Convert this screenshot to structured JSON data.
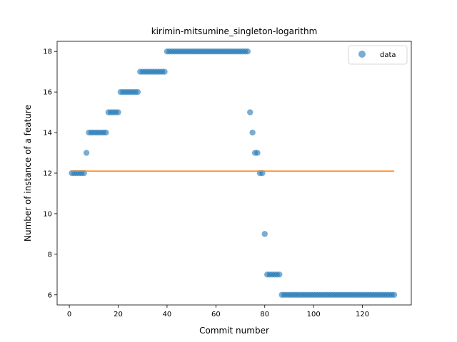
{
  "chart_data": {
    "type": "scatter",
    "title": "kirimin-mitsumine_singleton-logarithm",
    "xlabel": "Commit number",
    "ylabel": "Number of instance of a feature",
    "xlim": [
      -5,
      140
    ],
    "ylim": [
      5.5,
      18.5
    ],
    "xticks": [
      0,
      20,
      40,
      60,
      80,
      100,
      120
    ],
    "yticks": [
      6,
      8,
      10,
      12,
      14,
      16,
      18
    ],
    "grid": false,
    "legend": {
      "position": "top-right",
      "entries": [
        "data"
      ]
    },
    "series": [
      {
        "name": "data",
        "kind": "scatter",
        "color": "#1f77b4",
        "x": [
          1,
          2,
          3,
          4,
          5,
          6,
          7,
          8,
          9,
          10,
          11,
          12,
          13,
          14,
          15,
          16,
          17,
          18,
          19,
          20,
          21,
          22,
          23,
          24,
          25,
          26,
          27,
          28,
          29,
          30,
          31,
          32,
          33,
          34,
          35,
          36,
          37,
          38,
          39,
          40,
          41,
          42,
          43,
          44,
          45,
          46,
          47,
          48,
          49,
          50,
          51,
          52,
          53,
          54,
          55,
          56,
          57,
          58,
          59,
          60,
          61,
          62,
          63,
          64,
          65,
          66,
          67,
          68,
          69,
          70,
          71,
          72,
          73,
          74,
          75,
          76,
          77,
          78,
          79,
          80,
          81,
          82,
          83,
          84,
          85,
          86,
          87,
          88,
          89,
          90,
          91,
          92,
          93,
          94,
          95,
          96,
          97,
          98,
          99,
          100,
          101,
          102,
          103,
          104,
          105,
          106,
          107,
          108,
          109,
          110,
          111,
          112,
          113,
          114,
          115,
          116,
          117,
          118,
          119,
          120,
          121,
          122,
          123,
          124,
          125,
          126,
          127,
          128,
          129,
          130,
          131,
          132,
          133
        ],
        "y": [
          12,
          12,
          12,
          12,
          12,
          12,
          13,
          14,
          14,
          14,
          14,
          14,
          14,
          14,
          14,
          15,
          15,
          15,
          15,
          15,
          16,
          16,
          16,
          16,
          16,
          16,
          16,
          16,
          17,
          17,
          17,
          17,
          17,
          17,
          17,
          17,
          17,
          17,
          17,
          18,
          18,
          18,
          18,
          18,
          18,
          18,
          18,
          18,
          18,
          18,
          18,
          18,
          18,
          18,
          18,
          18,
          18,
          18,
          18,
          18,
          18,
          18,
          18,
          18,
          18,
          18,
          18,
          18,
          18,
          18,
          18,
          18,
          18,
          15,
          14,
          13,
          13,
          12,
          12,
          9,
          7,
          7,
          7,
          7,
          7,
          7,
          6,
          6,
          6,
          6,
          6,
          6,
          6,
          6,
          6,
          6,
          6,
          6,
          6,
          6,
          6,
          6,
          6,
          6,
          6,
          6,
          6,
          6,
          6,
          6,
          6,
          6,
          6,
          6,
          6,
          6,
          6,
          6,
          6,
          6,
          6,
          6,
          6,
          6,
          6,
          6,
          6,
          6,
          6,
          6,
          6,
          6,
          6
        ]
      },
      {
        "kind": "line",
        "color": "#ff7f0e",
        "x": [
          1,
          133
        ],
        "y": [
          12.1,
          12.1
        ]
      }
    ]
  }
}
